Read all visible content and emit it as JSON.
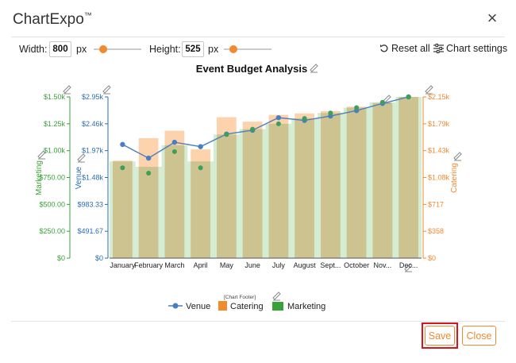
{
  "app": {
    "name": "ChartExpo",
    "trademark": "™"
  },
  "window": {
    "close_glyph": "×"
  },
  "toolbar": {
    "width_label": "Width:",
    "width_value": "800",
    "width_unit": "px",
    "width_slider_pct": 0.2,
    "height_label": "Height:",
    "height_value": "525",
    "height_unit": "px",
    "height_slider_pct": 0.2,
    "reset_label": "Reset all",
    "settings_label": "Chart settings"
  },
  "actions": {
    "save_label": "Save",
    "close_label": "Close",
    "accent": "#f28a2e",
    "highlight": "#d9141d"
  },
  "chart_data": {
    "type": "bar",
    "title": "Event Budget Analysis",
    "footer": "[Chart Footer]",
    "categories": [
      "January",
      "February",
      "March",
      "April",
      "May",
      "June",
      "July",
      "August",
      "Sept...",
      "October",
      "Nov...",
      "Dec..."
    ],
    "series": [
      {
        "name": "Venue",
        "kind": "line",
        "axis": "left-inner",
        "color": "#4a7fbf",
        "values": [
          2.08,
          1.83,
          2.12,
          2.04,
          2.27,
          2.34,
          2.57,
          2.52,
          2.6,
          2.7,
          2.83,
          2.95
        ]
      },
      {
        "name": "Catering",
        "kind": "bar",
        "axis": "right",
        "color": "#fdd3ae",
        "values": [
          1.3,
          1.6,
          1.7,
          1.45,
          1.88,
          1.82,
          1.91,
          1.93,
          1.96,
          2.02,
          2.07,
          2.15
        ]
      },
      {
        "name": "Marketing",
        "kind": "area",
        "axis": "left-outer",
        "color": "#c4e5c3",
        "values": [
          0.9,
          0.85,
          1.05,
          0.9,
          1.15,
          1.2,
          1.25,
          1.3,
          1.35,
          1.4,
          1.45,
          1.5
        ]
      }
    ],
    "axes": {
      "left_outer": {
        "label": "Marketing",
        "color": "#3aa03a",
        "range": [
          0,
          1.5
        ],
        "ticks": [
          "$0",
          "$250.00",
          "$500.00",
          "$750.00",
          "$1.00k",
          "$1.25k",
          "$1.50k"
        ]
      },
      "left_inner": {
        "label": "Venue",
        "color": "#2a6db3",
        "range": [
          0,
          2.95
        ],
        "ticks": [
          "$0",
          "$491.67",
          "$983.33",
          "$1.48k",
          "$1.97k",
          "$2.46k",
          "$2.95k"
        ]
      },
      "right": {
        "label": "Catering",
        "color": "#f28a2e",
        "range": [
          0,
          2.15
        ],
        "ticks": [
          "$0",
          "$358",
          "$717",
          "$1.08k",
          "$1.43k",
          "$1.79k",
          "$2.15k"
        ]
      }
    },
    "legend_position": "bottom",
    "marker_color": "#3aa05a",
    "pencil_color": "#8a8a8a"
  }
}
